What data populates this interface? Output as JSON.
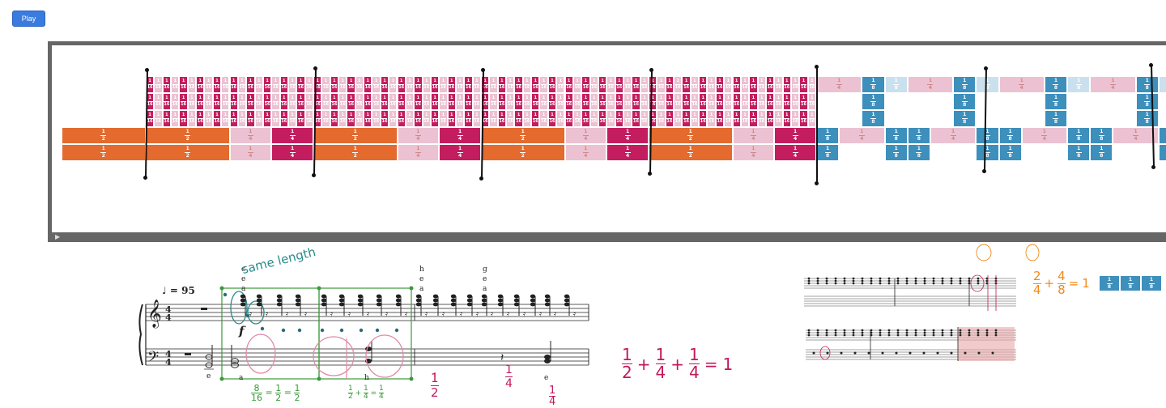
{
  "play_button": {
    "label": "Play"
  },
  "tempo": {
    "symbol": "♩",
    "text": "= 95"
  },
  "dynamic": "f",
  "note_labels_top": [
    {
      "id": "c",
      "text": "c"
    },
    {
      "id": "e1",
      "text": "e"
    },
    {
      "id": "a1",
      "text": "a"
    },
    {
      "id": "h1",
      "text": "h"
    },
    {
      "id": "e2",
      "text": "e"
    },
    {
      "id": "a2",
      "text": "a"
    },
    {
      "id": "g",
      "text": "g"
    },
    {
      "id": "e3",
      "text": "e"
    },
    {
      "id": "a3",
      "text": "a"
    }
  ],
  "note_labels_bottom": [
    {
      "id": "e4",
      "text": "e"
    },
    {
      "id": "a4",
      "text": "a"
    },
    {
      "id": "h2",
      "text": "h"
    },
    {
      "id": "e5",
      "text": "e"
    }
  ],
  "annotations": {
    "same_length": "same length",
    "green_eq_1": {
      "num_a": "8",
      "den_a": "16",
      "num_b": "1",
      "den_b": "2",
      "num_c": "1",
      "den_c": "2"
    },
    "green_eq_2": {
      "num_a": "1",
      "den_a": "2",
      "op": "+",
      "num_b": "1",
      "den_b": "4",
      "num_c": "1",
      "den_c": "4"
    },
    "pink_half": {
      "num": "1",
      "den": "2"
    },
    "pink_quarter_1": {
      "num": "1",
      "den": "4"
    },
    "pink_quarter_2": {
      "num": "1",
      "den": "4"
    },
    "sum_equation": {
      "terms": [
        "1",
        "2",
        "1",
        "4",
        "1",
        "4"
      ],
      "result": "1"
    },
    "orange_equation": {
      "a_num": "2",
      "a_den": "4",
      "b_num": "4",
      "b_den": "8",
      "result": "1"
    }
  },
  "colors": {
    "sixteenth_dark": "#c41d5f",
    "sixteenth_light": "#ecc2d2",
    "quarter_dark": "#c41d5f",
    "quarter_light": "#ecc2d2",
    "half": "#e46a2e",
    "eighth_dark": "#3d8fbc",
    "eighth_light": "#c9e1ee",
    "play_blue": "#3a7be0",
    "frame_gray": "#666666",
    "annotation_green": "#3a9a3a",
    "annotation_pink": "#c2195a",
    "annotation_teal": "#2a8a8a",
    "annotation_orange": "#f08a1a"
  },
  "fractions": {
    "sixteenth": {
      "num": "1",
      "den": "16"
    },
    "eighth": {
      "num": "1",
      "den": "8"
    },
    "quarter": {
      "num": "1",
      "den": "4"
    },
    "half": {
      "num": "1",
      "den": "2"
    }
  },
  "snippet_blocks": [
    {
      "num": "1",
      "den": "8"
    },
    {
      "num": "1",
      "den": "8"
    },
    {
      "num": "1",
      "den": "8"
    }
  ],
  "icons": {
    "play_triangle": "play-icon"
  }
}
